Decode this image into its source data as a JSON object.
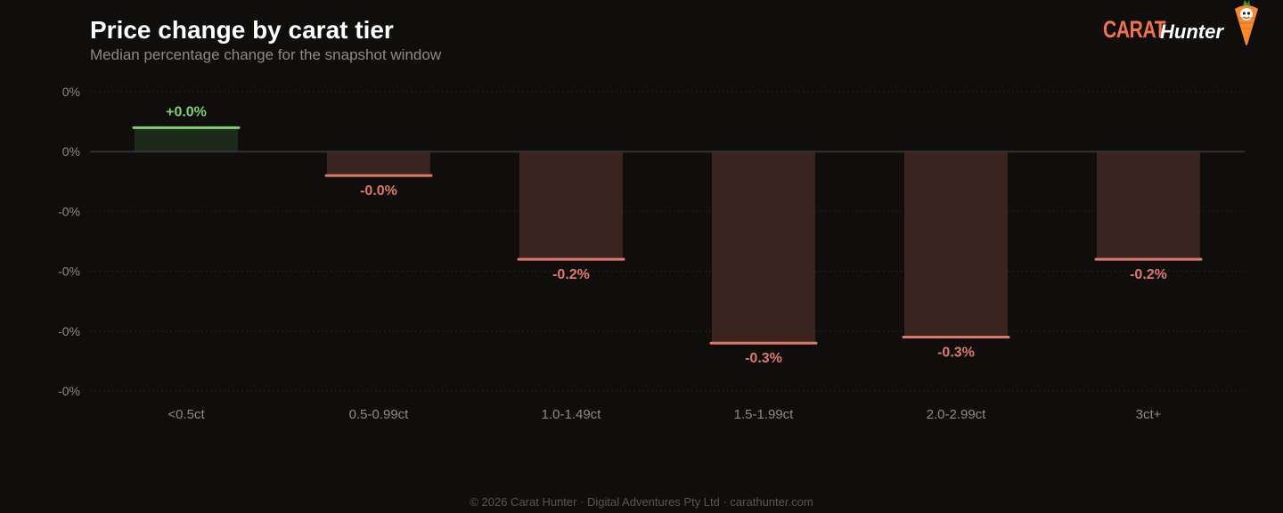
{
  "header": {
    "title": "Price change by carat tier",
    "subtitle": "Median percentage change for the snapshot window"
  },
  "brand": {
    "word1": "CARAT",
    "word2": "Hunter",
    "mascot_icon": "carrot-mascot-icon",
    "word1_color": "#f27249",
    "word2_color": "#ffffff"
  },
  "footer": {
    "text": "© 2026 Carat Hunter · Digital Adventures Pty Ltd · carathunter.com"
  },
  "colors": {
    "background": "#0f0e0d",
    "positive": "#7fd16f",
    "positive_fill": "#1d2a1b",
    "negative": "#e0786a",
    "negative_fill": "#3a2420",
    "grid": "#222120",
    "zero_line": "#333231",
    "tick": "#8d8a84"
  },
  "chart_data": {
    "type": "bar",
    "title": "Price change by carat tier",
    "subtitle": "Median percentage change for the snapshot window",
    "xlabel": "",
    "ylabel": "",
    "categories": [
      "<0.5ct",
      "0.5-0.99ct",
      "1.0-1.49ct",
      "1.5-1.99ct",
      "2.0-2.99ct",
      "3ct+"
    ],
    "values": [
      0.0004,
      -0.0004,
      -0.0018,
      -0.0032,
      -0.0031,
      -0.0018
    ],
    "value_labels": [
      "+0.0%",
      "-0.0%",
      "-0.2%",
      "-0.3%",
      "-0.3%",
      "-0.2%"
    ],
    "ylim": [
      -0.004,
      0.001
    ],
    "y_ticks": [
      0.001,
      0,
      -0.001,
      -0.002,
      -0.003,
      -0.004
    ],
    "y_tick_labels": [
      "0%",
      "0%",
      "-0%",
      "-0%",
      "-0%",
      "-0%"
    ],
    "grid": true,
    "legend": "none"
  }
}
